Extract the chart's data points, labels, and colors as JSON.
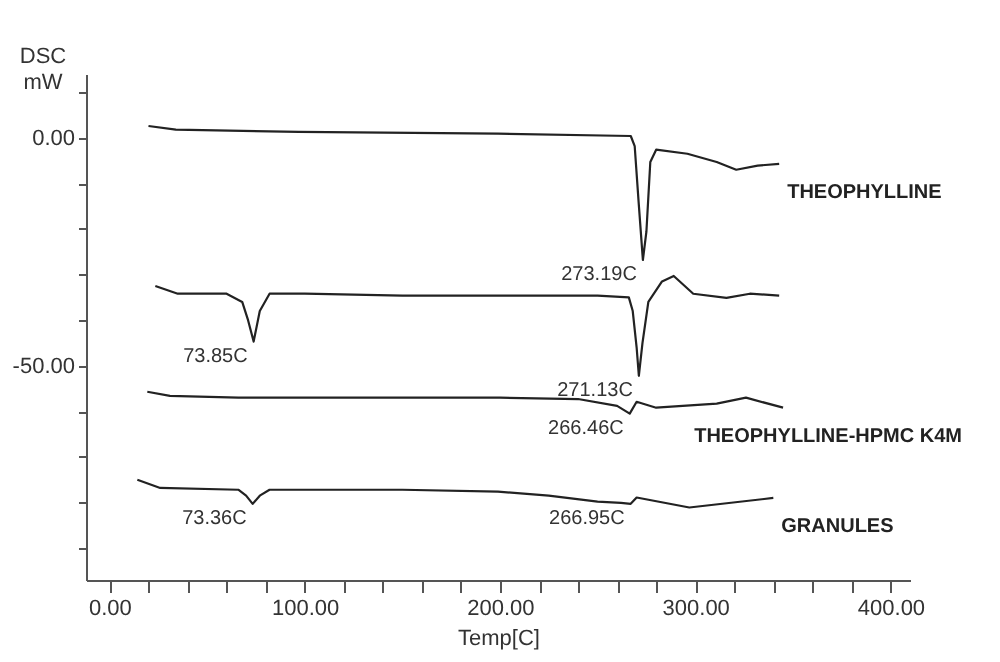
{
  "chart_data": {
    "type": "line",
    "xlabel": "Temp[C]",
    "ylabel": "DSC\nmW",
    "xlim": [
      -12,
      410
    ],
    "ylim": [
      -97,
      14
    ],
    "xticks": [
      {
        "value": 0,
        "label": "0.00"
      },
      {
        "value": 20,
        "label": null
      },
      {
        "value": 40,
        "label": null
      },
      {
        "value": 60,
        "label": null
      },
      {
        "value": 80,
        "label": null
      },
      {
        "value": 100,
        "label": "100.00"
      },
      {
        "value": 120,
        "label": null
      },
      {
        "value": 140,
        "label": null
      },
      {
        "value": 160,
        "label": null
      },
      {
        "value": 180,
        "label": null
      },
      {
        "value": 200,
        "label": "200.00"
      },
      {
        "value": 220,
        "label": null
      },
      {
        "value": 240,
        "label": null
      },
      {
        "value": 260,
        "label": null
      },
      {
        "value": 280,
        "label": null
      },
      {
        "value": 300,
        "label": "300.00"
      },
      {
        "value": 320,
        "label": null
      },
      {
        "value": 340,
        "label": null
      },
      {
        "value": 360,
        "label": null
      },
      {
        "value": 380,
        "label": null
      },
      {
        "value": 400,
        "label": "400.00"
      }
    ],
    "yticks": [
      {
        "value": 10,
        "label": null
      },
      {
        "value": 0,
        "label": "0.00"
      },
      {
        "value": -10,
        "label": null
      },
      {
        "value": -20,
        "label": null
      },
      {
        "value": -30,
        "label": null
      },
      {
        "value": -40,
        "label": null
      },
      {
        "value": -50,
        "label": "-50.00"
      },
      {
        "value": -60,
        "label": null
      },
      {
        "value": -70,
        "label": null
      },
      {
        "value": -80,
        "label": null
      },
      {
        "value": -90,
        "label": null
      }
    ],
    "grid": false,
    "marker": "none",
    "line_style": "solid",
    "series": [
      {
        "name": "THEOPHYLLINE",
        "color": "#222222",
        "x": [
          20,
          34,
          97,
          199,
          267,
          269,
          271,
          273.2,
          275,
          277,
          280,
          296,
          311,
          321,
          332,
          343
        ],
        "values": [
          2.6,
          1.8,
          1.3,
          0.9,
          0.4,
          -1.8,
          -14,
          -26.8,
          -20.6,
          -5.3,
          -2.6,
          -3.5,
          -5.3,
          -7,
          -6.1,
          -5.7
        ]
      },
      {
        "color": "#222222",
        "x": [
          23.5,
          35,
          60,
          68,
          71,
          73.85,
          77,
          82,
          100,
          150,
          200,
          250,
          266,
          268,
          270,
          271.13,
          273,
          276,
          283,
          289,
          299,
          316,
          328,
          343
        ],
        "values": [
          -32.5,
          -34.2,
          -34.2,
          -36,
          -40,
          -44.7,
          -38,
          -34.2,
          -34.2,
          -34.6,
          -34.6,
          -34.6,
          -35,
          -38,
          -46,
          -52.2,
          -45,
          -36,
          -31.5,
          -30.3,
          -34.2,
          -35.1,
          -34.2,
          -34.6
        ]
      },
      {
        "name": "THEOPHYLLINE-HPMC K4M",
        "color": "#222222",
        "x": [
          19.4,
          31,
          66,
          150,
          200,
          240,
          260,
          266.46,
          270,
          280,
          311,
          326,
          345
        ],
        "values": [
          -55.7,
          -56.6,
          -57,
          -57,
          -57,
          -57.3,
          -58.8,
          -60.5,
          -57.9,
          -59.2,
          -58.3,
          -57,
          -59.2
        ]
      },
      {
        "name": "GRANULES",
        "color": "#222222",
        "x": [
          14.3,
          26,
          66,
          70,
          73.36,
          77,
          82,
          150,
          199,
          225,
          250,
          262,
          266.95,
          270,
          297,
          340
        ],
        "values": [
          -75,
          -76.8,
          -77.2,
          -78.5,
          -80.3,
          -78.5,
          -77.2,
          -77.2,
          -77.6,
          -78.5,
          -79.8,
          -80.1,
          -80.3,
          -78.9,
          -81.1,
          -79
        ]
      }
    ],
    "annotations": [
      {
        "text": "273.19C",
        "x": 273.19,
        "y": -26.8
      },
      {
        "text": "73.85C",
        "x": 73.85,
        "y": -44.7
      },
      {
        "text": "271.13C",
        "x": 271.13,
        "y": -52.2
      },
      {
        "text": "266.46C",
        "x": 266.46,
        "y": -60.5
      },
      {
        "text": "73.36C",
        "x": 73.36,
        "y": -80.3
      },
      {
        "text": "266.95C",
        "x": 266.95,
        "y": -80.3
      }
    ]
  }
}
